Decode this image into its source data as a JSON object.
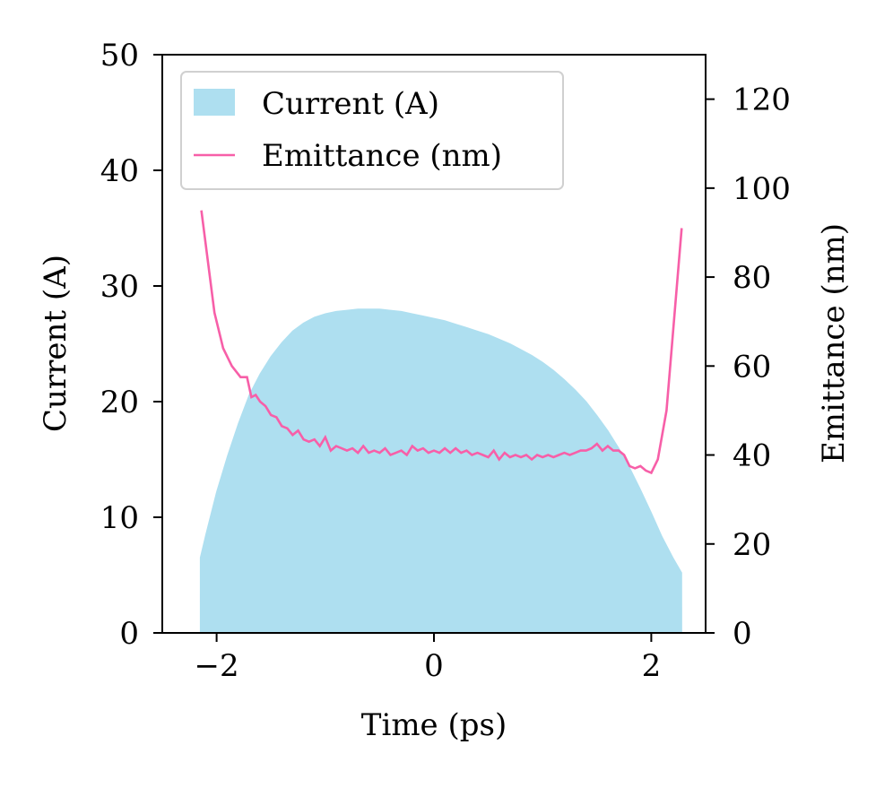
{
  "chart_data": {
    "type": "area",
    "xlabel": "Time (ps)",
    "ylabel": "Current (A)",
    "y2label": "Emittance (nm)",
    "xlim": [
      -2.5,
      2.5
    ],
    "ylim": [
      0,
      50
    ],
    "y2lim": [
      0,
      130
    ],
    "xticks": [
      -2,
      0,
      2
    ],
    "xtick_labels": [
      "−2",
      "0",
      "2"
    ],
    "yticks": [
      0,
      10,
      20,
      30,
      40,
      50
    ],
    "ytick_labels": [
      "0",
      "10",
      "20",
      "30",
      "40",
      "50"
    ],
    "y2ticks": [
      0,
      20,
      40,
      60,
      80,
      100,
      120
    ],
    "y2tick_labels": [
      "0",
      "20",
      "40",
      "60",
      "80",
      "100",
      "120"
    ],
    "legend_position": "upper-left",
    "grid": false,
    "series": [
      {
        "name": "Current (A)",
        "kind": "area",
        "axis": "left",
        "color": "#aedff0",
        "x": [
          -2.15,
          -2.1,
          -2.0,
          -1.9,
          -1.8,
          -1.7,
          -1.6,
          -1.5,
          -1.4,
          -1.3,
          -1.2,
          -1.1,
          -1.0,
          -0.9,
          -0.8,
          -0.7,
          -0.6,
          -0.5,
          -0.4,
          -0.3,
          -0.2,
          -0.1,
          0.0,
          0.1,
          0.2,
          0.3,
          0.4,
          0.5,
          0.6,
          0.7,
          0.8,
          0.9,
          1.0,
          1.1,
          1.2,
          1.3,
          1.4,
          1.5,
          1.6,
          1.7,
          1.8,
          1.9,
          2.0,
          2.1,
          2.2,
          2.28
        ],
        "values": [
          6.5,
          8.5,
          12.2,
          15.3,
          18.1,
          20.6,
          22.4,
          23.9,
          25.1,
          26.1,
          26.8,
          27.3,
          27.6,
          27.8,
          27.9,
          28.0,
          28.0,
          28.0,
          27.9,
          27.8,
          27.6,
          27.4,
          27.2,
          27.0,
          26.7,
          26.4,
          26.1,
          25.8,
          25.4,
          25.0,
          24.5,
          24.0,
          23.4,
          22.7,
          21.9,
          21.0,
          20.0,
          18.8,
          17.5,
          16.0,
          14.3,
          12.4,
          10.4,
          8.3,
          6.5,
          5.2
        ]
      },
      {
        "name": "Emittance (nm)",
        "kind": "line",
        "axis": "right",
        "color": "#f75fa8",
        "x": [
          -2.14,
          -2.02,
          -1.94,
          -1.86,
          -1.78,
          -1.72,
          -1.68,
          -1.64,
          -1.6,
          -1.55,
          -1.5,
          -1.45,
          -1.4,
          -1.35,
          -1.3,
          -1.25,
          -1.2,
          -1.15,
          -1.1,
          -1.05,
          -1.0,
          -0.95,
          -0.9,
          -0.85,
          -0.8,
          -0.75,
          -0.7,
          -0.65,
          -0.6,
          -0.55,
          -0.5,
          -0.45,
          -0.4,
          -0.35,
          -0.3,
          -0.25,
          -0.2,
          -0.15,
          -0.1,
          -0.05,
          0.0,
          0.05,
          0.1,
          0.15,
          0.2,
          0.25,
          0.3,
          0.35,
          0.4,
          0.45,
          0.5,
          0.55,
          0.6,
          0.65,
          0.7,
          0.75,
          0.8,
          0.85,
          0.9,
          0.95,
          1.0,
          1.05,
          1.1,
          1.15,
          1.2,
          1.25,
          1.3,
          1.35,
          1.4,
          1.45,
          1.5,
          1.55,
          1.6,
          1.65,
          1.7,
          1.75,
          1.8,
          1.85,
          1.9,
          1.95,
          2.0,
          2.06,
          2.14,
          2.28
        ],
        "values": [
          95,
          72,
          64,
          60,
          57.5,
          57.5,
          53,
          53.5,
          52,
          51,
          49,
          48.5,
          46.5,
          46,
          44.5,
          45.5,
          43.5,
          43,
          43.5,
          42,
          44,
          41,
          42,
          41.5,
          41,
          41.5,
          40.5,
          42,
          40.5,
          41,
          40.5,
          41.5,
          40,
          40.5,
          41,
          40,
          42,
          41,
          41.5,
          40.5,
          41,
          40.5,
          41.5,
          40.5,
          41.5,
          40.5,
          41,
          40,
          40.5,
          40,
          39.5,
          41,
          39,
          40.5,
          39.5,
          40,
          39.5,
          40,
          39,
          40,
          39.5,
          40,
          39.5,
          40,
          40.5,
          40,
          40.5,
          41,
          41,
          41.5,
          42.5,
          41,
          42,
          41,
          41,
          40,
          37.5,
          37,
          37.5,
          36.5,
          36,
          39,
          50,
          91
        ]
      }
    ]
  }
}
